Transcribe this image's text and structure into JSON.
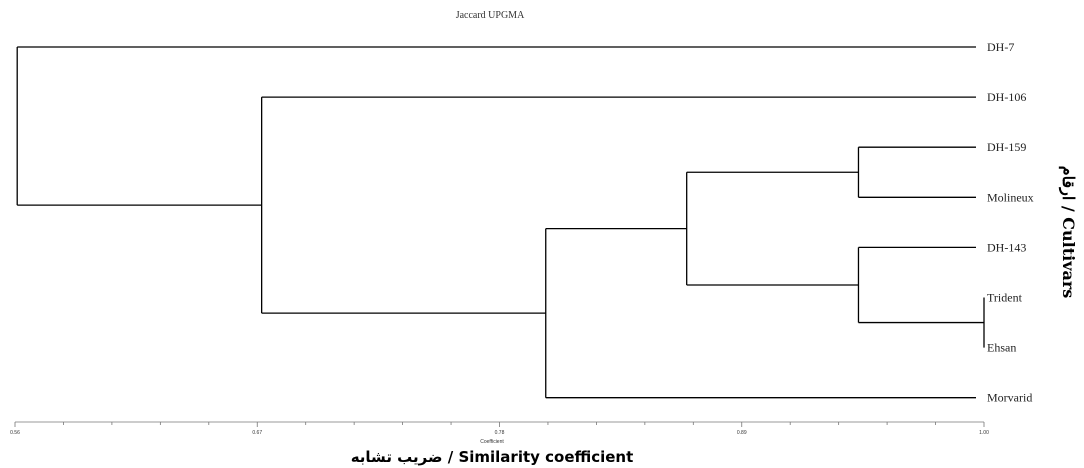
{
  "chart_data": {
    "type": "dendrogram",
    "title": "Jaccard UPGMA",
    "axis_small_label": "Coefficient",
    "xlabel": "ضریب تشابه / Similarity coefficient",
    "ylabel": "ارقام / Cultivars",
    "xlim": [
      0.56,
      1.0
    ],
    "ticks": [
      {
        "value": 0.56,
        "label": "0.56"
      },
      {
        "value": 0.67,
        "label": "0.67"
      },
      {
        "value": 0.78,
        "label": "0.78"
      },
      {
        "value": 0.89,
        "label": "0.89"
      },
      {
        "value": 1.0,
        "label": "1.00"
      }
    ],
    "leaves": [
      "DH-7",
      "DH-106",
      "DH-159",
      "Molineux",
      "DH-143",
      "Trident",
      "Ehsan",
      "Morvarid"
    ],
    "merges": [
      {
        "id": "n1",
        "children": [
          "Trident",
          "Ehsan"
        ],
        "similarity": 1.0
      },
      {
        "id": "n2",
        "children": [
          "DH-159",
          "Molineux"
        ],
        "similarity": 0.943
      },
      {
        "id": "n3",
        "children": [
          "DH-143",
          "n1"
        ],
        "similarity": 0.943
      },
      {
        "id": "n4",
        "children": [
          "n2",
          "n3"
        ],
        "similarity": 0.865
      },
      {
        "id": "n5",
        "children": [
          "n4",
          "Morvarid"
        ],
        "similarity": 0.801
      },
      {
        "id": "n6",
        "children": [
          "DH-106",
          "n5"
        ],
        "similarity": 0.672
      },
      {
        "id": "n7",
        "children": [
          "DH-7",
          "n6"
        ],
        "similarity": 0.561
      }
    ]
  }
}
